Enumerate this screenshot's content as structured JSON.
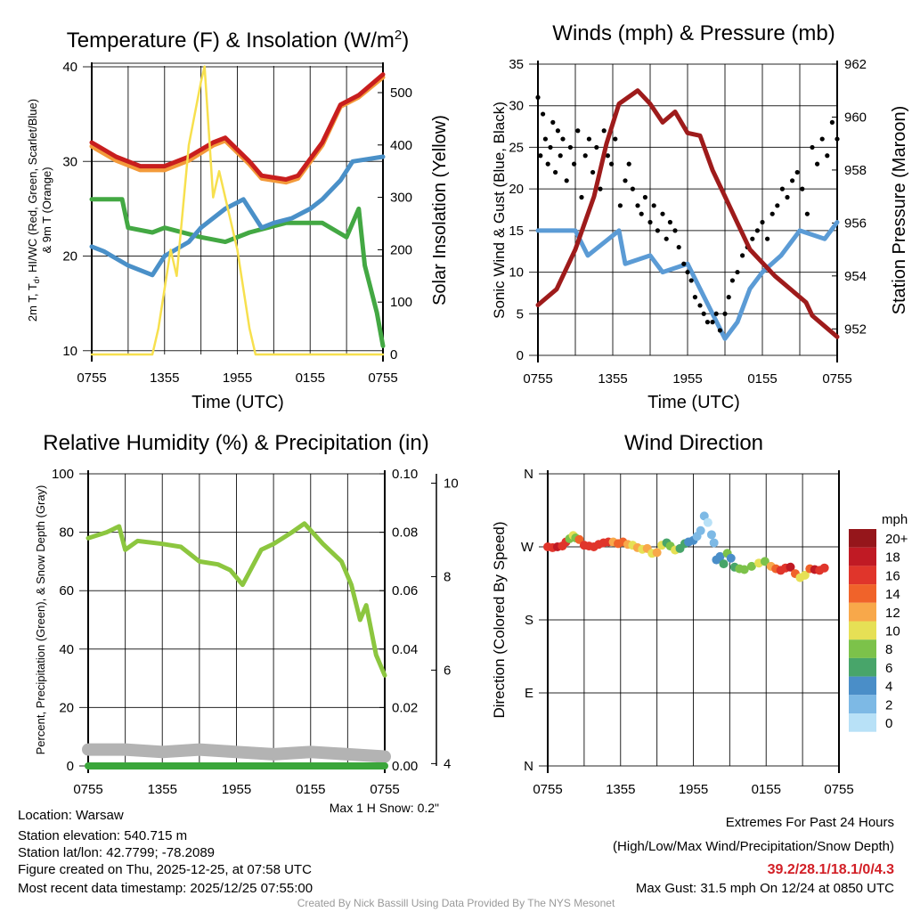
{
  "footer": {
    "location": "Location: Warsaw",
    "elevation": "Station elevation: 540.715 m",
    "latlon": "Station lat/lon: 42.7799; -78.2089",
    "created": "Figure created on Thu, 2025-12-25, at 07:58 UTC",
    "recent": "Most recent data timestamp: 2025/12/25 07:55:00",
    "extremes_title": "Extremes For Past 24 Hours",
    "extremes_sub": "(High/Low/Max Wind/Precipitation/Snow Depth)",
    "extremes_values": "39.2/28.1/18.1/0/4.3",
    "max_gust": "Max Gust: 31.5 mph On 12/24 at 0850 UTC",
    "credit": "Created By Nick Bassill Using Data Provided By The NYS Mesonet"
  },
  "colors": {
    "temp": "#c81e1e",
    "temp9m": "#f39a3a",
    "hiwc": "#43a843",
    "dewpoint": "#4a90c8",
    "solar": "#f7e04e",
    "wind": "#5b9bd5",
    "gust": "#000000",
    "pressure": "#9e1b1b",
    "rh": "#8cc63f",
    "precip": "#3aa63a",
    "snow": "#b3b3b3"
  },
  "chart_data": [
    {
      "type": "line",
      "title": "Temperature (F) & Insolation (W/m",
      "title_sup": "2",
      "title_end": ")",
      "xlabel": "Time (UTC)",
      "ylabel_line1": "2m T, T",
      "ylabel_sub": "d",
      "ylabel_line1_end": ", HI/WC (Red, Green, Scarlet/Blue)",
      "ylabel_line2": "& 9m T (Orange)",
      "y2label": "Solar Insolation (Yellow)",
      "xticks": [
        "0755",
        "1355",
        "1955",
        "0155",
        "0755"
      ],
      "x_hours": [
        0,
        24
      ],
      "ylim": [
        9.6,
        40.1
      ],
      "yticks": [
        10,
        20,
        30,
        40
      ],
      "y2lim": [
        0,
        551
      ],
      "y2ticks": [
        0,
        100,
        200,
        300,
        400,
        500
      ],
      "series": [
        {
          "name": "9m T",
          "color_key": "temp9m",
          "x": [
            0,
            2,
            4,
            6,
            8,
            10,
            11,
            13,
            14,
            16,
            17,
            19,
            20.5,
            22,
            24
          ],
          "y": [
            31.6,
            30.1,
            29.1,
            29.1,
            30.1,
            31.7,
            32.2,
            29.7,
            28.2,
            27.8,
            28.2,
            31.7,
            35.8,
            36.8,
            38.9
          ]
        },
        {
          "name": "2m T",
          "color_key": "temp",
          "x": [
            0,
            2,
            4,
            6,
            8,
            10,
            11,
            13,
            14,
            16,
            17,
            19,
            20.5,
            22,
            24
          ],
          "y": [
            32,
            30.5,
            29.5,
            29.5,
            30.5,
            32,
            32.5,
            30,
            28.5,
            28.1,
            28.5,
            32,
            36,
            37,
            39.2
          ]
        },
        {
          "name": "HI/WC",
          "color_key": "hiwc",
          "x": [
            0,
            2.5,
            3,
            5,
            6,
            9,
            11,
            13,
            16,
            19,
            21,
            22,
            22.5,
            23.5,
            24
          ],
          "y": [
            26,
            26,
            23,
            22.5,
            23,
            22,
            21.5,
            22.5,
            23.5,
            23.5,
            22,
            25,
            19,
            14,
            10.5
          ]
        },
        {
          "name": "Td",
          "color_key": "dewpoint",
          "x": [
            0,
            1,
            3,
            5,
            6,
            8,
            9,
            11,
            12.5,
            14,
            15,
            16.5,
            18,
            19,
            20.5,
            21.5,
            24
          ],
          "y": [
            21,
            20.5,
            19,
            18,
            20,
            21.5,
            23,
            25,
            26,
            23,
            23.5,
            24,
            25,
            26,
            28,
            30,
            30.5
          ]
        },
        {
          "name": "Solar",
          "color_key": "solar",
          "axis": "y2",
          "x": [
            0,
            5,
            5.5,
            6.5,
            7,
            8,
            9,
            9.3,
            10,
            10.5,
            12,
            13,
            13.5,
            24
          ],
          "y": [
            0,
            0,
            50,
            200,
            150,
            400,
            520,
            550,
            300,
            350,
            200,
            50,
            0,
            0
          ]
        }
      ]
    },
    {
      "type": "line",
      "title": "Winds (mph) & Pressure (mb)",
      "xlabel": "Time (UTC)",
      "ylabel": "Sonic Wind & Gust (Blue, Black)",
      "y2label": "Station Pressure (Maroon)",
      "xticks": [
        "0755",
        "1355",
        "1955",
        "0155",
        "0755"
      ],
      "ylim": [
        0,
        35
      ],
      "yticks": [
        0,
        5,
        10,
        15,
        20,
        25,
        30,
        35
      ],
      "y2lim": [
        951,
        962
      ],
      "y2ticks": [
        952,
        954,
        956,
        958,
        960,
        962
      ],
      "wind": {
        "x": [
          0,
          3,
          4,
          6.5,
          7,
          9,
          10,
          12,
          13,
          14,
          15,
          16,
          17,
          18,
          19.5,
          21,
          23,
          24
        ],
        "y": [
          15,
          15,
          12,
          15,
          11,
          12,
          10,
          11,
          8,
          5,
          2,
          4,
          8,
          10,
          12,
          15,
          14,
          16
        ]
      },
      "gust": [
        [
          0,
          31
        ],
        [
          0.2,
          24
        ],
        [
          0.4,
          29
        ],
        [
          0.6,
          26
        ],
        [
          0.8,
          23
        ],
        [
          1,
          25
        ],
        [
          1.2,
          28
        ],
        [
          1.4,
          22
        ],
        [
          1.6,
          27
        ],
        [
          1.8,
          24
        ],
        [
          2,
          26
        ],
        [
          2.3,
          21
        ],
        [
          2.6,
          25
        ],
        [
          2.9,
          23
        ],
        [
          3.2,
          27
        ],
        [
          3.5,
          19
        ],
        [
          3.8,
          24
        ],
        [
          4.1,
          26
        ],
        [
          4.4,
          22
        ],
        [
          4.7,
          25
        ],
        [
          5,
          20
        ],
        [
          5.3,
          27
        ],
        [
          5.6,
          24
        ],
        [
          5.9,
          23
        ],
        [
          6.2,
          26
        ],
        [
          6.6,
          18
        ],
        [
          7,
          21
        ],
        [
          7.3,
          23
        ],
        [
          7.6,
          20
        ],
        [
          8,
          18
        ],
        [
          8.3,
          17
        ],
        [
          8.6,
          19
        ],
        [
          9,
          16
        ],
        [
          9.3,
          18
        ],
        [
          9.6,
          15
        ],
        [
          10,
          17
        ],
        [
          10.3,
          14
        ],
        [
          10.6,
          16
        ],
        [
          11,
          15
        ],
        [
          11.3,
          13
        ],
        [
          11.7,
          11
        ],
        [
          12,
          10
        ],
        [
          12.3,
          9
        ],
        [
          12.6,
          7
        ],
        [
          13,
          6
        ],
        [
          13.3,
          5
        ],
        [
          13.6,
          4
        ],
        [
          14,
          4
        ],
        [
          14.3,
          5
        ],
        [
          14.6,
          3
        ],
        [
          15,
          5
        ],
        [
          15.3,
          7
        ],
        [
          15.6,
          9
        ],
        [
          16,
          10
        ],
        [
          16.4,
          12
        ],
        [
          16.8,
          13
        ],
        [
          17.2,
          14
        ],
        [
          17.6,
          15
        ],
        [
          18,
          16
        ],
        [
          18.4,
          14
        ],
        [
          18.8,
          17
        ],
        [
          19.2,
          18
        ],
        [
          19.6,
          20
        ],
        [
          20,
          19
        ],
        [
          20.4,
          21
        ],
        [
          20.8,
          22
        ],
        [
          21.2,
          20
        ],
        [
          21.6,
          17
        ],
        [
          22,
          25
        ],
        [
          22.4,
          23
        ],
        [
          22.8,
          26
        ],
        [
          23.2,
          24
        ],
        [
          23.6,
          28
        ],
        [
          24,
          26
        ]
      ],
      "pressure": {
        "x": [
          0,
          1.5,
          3,
          4.5,
          5.5,
          6.5,
          8,
          9,
          10,
          11,
          12,
          13,
          14,
          15,
          16,
          17,
          19,
          21.5,
          22,
          23,
          24
        ],
        "y": [
          952.9,
          953.5,
          955,
          957,
          959,
          960.5,
          961,
          960.5,
          959.8,
          960.2,
          959.4,
          959.3,
          958,
          957,
          956,
          955,
          954,
          953,
          952.5,
          952.1,
          951.7
        ]
      }
    },
    {
      "type": "line",
      "title": "Relative Humidity (%) & Precipitation (in)",
      "ylabel": "Percent, Precipitation (Green), & Snow Depth (Gray)",
      "xticks": [
        "0755",
        "1355",
        "1955",
        "0155",
        "0755"
      ],
      "ylim": [
        0,
        100
      ],
      "yticks": [
        0,
        20,
        40,
        60,
        80,
        100
      ],
      "y2lim": [
        0,
        0.1
      ],
      "y2ticks": [
        "0.00",
        "0.02",
        "0.04",
        "0.06",
        "0.08",
        "0.10"
      ],
      "y3lim": [
        3.95,
        10.2
      ],
      "y3ticks": [
        4,
        6,
        8,
        10
      ],
      "note": "Max 1 H Snow: 0.2\"",
      "rh": {
        "x": [
          0,
          1.5,
          2.5,
          3,
          4,
          6,
          7.5,
          9,
          10.5,
          11.5,
          12.5,
          13,
          14,
          15,
          16.5,
          17.5,
          19,
          20.5,
          21.3,
          22,
          22.5,
          23.3,
          24
        ],
        "y": [
          78,
          80,
          82,
          74,
          77,
          76,
          75,
          70,
          69,
          67,
          62,
          66,
          74,
          76,
          80,
          83,
          76,
          70,
          62,
          50,
          55,
          38,
          31
        ]
      },
      "precip": {
        "x": [
          0,
          24
        ],
        "y": [
          0,
          0
        ]
      },
      "snow_depth": {
        "x": [
          0,
          3,
          6,
          9,
          12,
          15,
          18,
          21,
          24
        ],
        "y": [
          4.3,
          4.3,
          4.25,
          4.3,
          4.25,
          4.2,
          4.25,
          4.2,
          4.15
        ]
      }
    },
    {
      "type": "scatter",
      "title": "Wind Direction",
      "ylabel": "Direction (Colored By Speed)",
      "xticks": [
        "0755",
        "1355",
        "1955",
        "0155",
        "0755"
      ],
      "yticks": [
        "N",
        "E",
        "S",
        "W",
        "N"
      ],
      "ylim": [
        0,
        360
      ],
      "legend_title": "mph",
      "legend": [
        "20+",
        "18",
        "16",
        "14",
        "12",
        "10",
        "8",
        "6",
        "4",
        "2",
        "0"
      ],
      "legend_colors": [
        "#95161b",
        "#c01a24",
        "#e0352b",
        "#f0632a",
        "#f8a84a",
        "#e6e055",
        "#7cc24a",
        "#48a56a",
        "#4a8ec8",
        "#7db9e5",
        "#b8e1f7"
      ],
      "points": [
        [
          0,
          270,
          17
        ],
        [
          0.4,
          269,
          17
        ],
        [
          0.8,
          270,
          18
        ],
        [
          1.2,
          271,
          17
        ],
        [
          1.5,
          276,
          16
        ],
        [
          1.8,
          280,
          9
        ],
        [
          2.1,
          284,
          10
        ],
        [
          2.3,
          281,
          8
        ],
        [
          2.6,
          279,
          14
        ],
        [
          3,
          272,
          17
        ],
        [
          3.4,
          271,
          16
        ],
        [
          3.8,
          270,
          17
        ],
        [
          4.2,
          273,
          16
        ],
        [
          4.6,
          275,
          17
        ],
        [
          5,
          276,
          16
        ],
        [
          5.4,
          276,
          13
        ],
        [
          5.8,
          274,
          14
        ],
        [
          6.2,
          276,
          15
        ],
        [
          6.6,
          273,
          13
        ],
        [
          7,
          272,
          11
        ],
        [
          7.4,
          269,
          12
        ],
        [
          7.8,
          267,
          10
        ],
        [
          8.2,
          268,
          13
        ],
        [
          8.6,
          262,
          11
        ],
        [
          9,
          263,
          12
        ],
        [
          9.4,
          272,
          10
        ],
        [
          9.8,
          275,
          7
        ],
        [
          10.1,
          271,
          8
        ],
        [
          10.5,
          266,
          10
        ],
        [
          10.9,
          268,
          6
        ],
        [
          11.3,
          274,
          6
        ],
        [
          11.6,
          276,
          5
        ],
        [
          12,
          278,
          4
        ],
        [
          12.3,
          283,
          3
        ],
        [
          12.6,
          290,
          2
        ],
        [
          12.9,
          308,
          2
        ],
        [
          13.2,
          300,
          1
        ],
        [
          13.5,
          285,
          3
        ],
        [
          13.7,
          275,
          2
        ],
        [
          13.9,
          254,
          4
        ],
        [
          14.2,
          258,
          5
        ],
        [
          14.5,
          249,
          6
        ],
        [
          14.8,
          262,
          8
        ],
        [
          15.1,
          256,
          5
        ],
        [
          15.4,
          245,
          6
        ],
        [
          15.8,
          243,
          8
        ],
        [
          16.2,
          242,
          8
        ],
        [
          16.8,
          246,
          9
        ],
        [
          17.4,
          250,
          10
        ],
        [
          17.9,
          252,
          9
        ],
        [
          18.4,
          246,
          12
        ],
        [
          18.8,
          243,
          15
        ],
        [
          19.2,
          241,
          17
        ],
        [
          19.6,
          244,
          16
        ],
        [
          20,
          245,
          18
        ],
        [
          20.4,
          237,
          14
        ],
        [
          20.8,
          232,
          10
        ],
        [
          21.2,
          235,
          11
        ],
        [
          21.6,
          243,
          15
        ],
        [
          22,
          242,
          18
        ],
        [
          22.4,
          241,
          16
        ],
        [
          22.8,
          244,
          17
        ]
      ]
    }
  ]
}
